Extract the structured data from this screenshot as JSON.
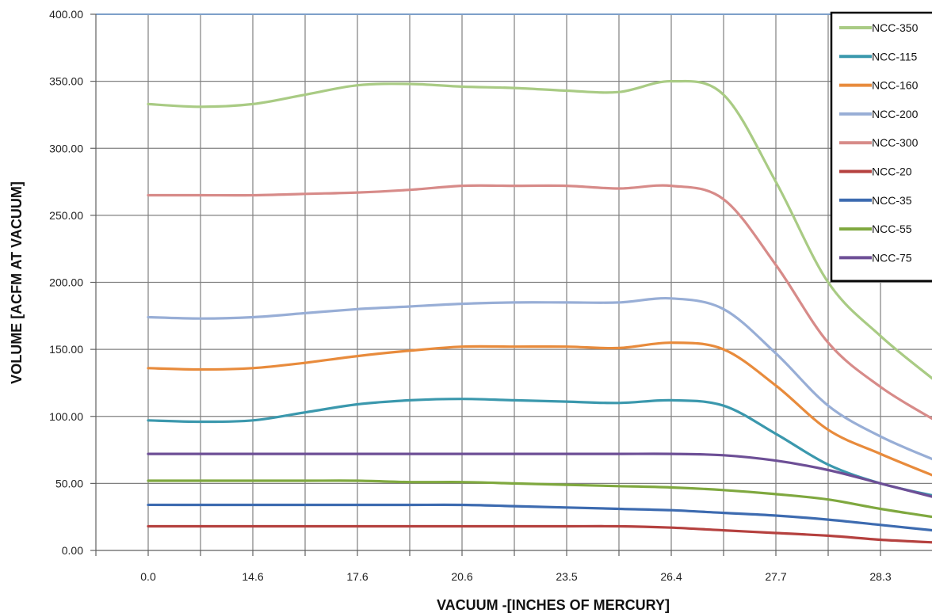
{
  "chart_data": {
    "type": "line",
    "title": "",
    "xlabel": "VACUUM -[INCHES OF MERCURY]",
    "ylabel": "VOLUME [ACFM AT VACUUM]",
    "ylim": [
      0,
      400
    ],
    "yticks": [
      "0.00",
      "50.00",
      "100.00",
      "150.00",
      "200.00",
      "250.00",
      "300.00",
      "350.00",
      "400.00"
    ],
    "x_tick_labels": [
      "0.0",
      "14.6",
      "17.6",
      "20.6",
      "23.5",
      "26.4",
      "27.7",
      "28.3"
    ],
    "grid": true,
    "legend_position": "top-right",
    "x_points": 15,
    "series": [
      {
        "name": "NCC-350",
        "color": "#a9cb84",
        "values": [
          333,
          331,
          333,
          340,
          347,
          348,
          346,
          345,
          343,
          342,
          350,
          340,
          275,
          200,
          160,
          128
        ]
      },
      {
        "name": "NCC-115",
        "color": "#3b98ad",
        "values": [
          97,
          96,
          97,
          103,
          109,
          112,
          113,
          112,
          111,
          110,
          112,
          108,
          87,
          64,
          50,
          41
        ]
      },
      {
        "name": "NCC-160",
        "color": "#e88b3c",
        "values": [
          136,
          135,
          136,
          140,
          145,
          149,
          152,
          152,
          152,
          151,
          155,
          150,
          123,
          90,
          72,
          56
        ]
      },
      {
        "name": "NCC-200",
        "color": "#98aed6",
        "values": [
          174,
          173,
          174,
          177,
          180,
          182,
          184,
          185,
          185,
          185,
          188,
          180,
          147,
          108,
          85,
          68
        ]
      },
      {
        "name": "NCC-300",
        "color": "#d78b89",
        "values": [
          265,
          265,
          265,
          266,
          267,
          269,
          272,
          272,
          272,
          270,
          272,
          262,
          213,
          155,
          122,
          98
        ]
      },
      {
        "name": "NCC-20",
        "color": "#b5413f",
        "values": [
          18,
          18,
          18,
          18,
          18,
          18,
          18,
          18,
          18,
          18,
          17,
          15,
          13,
          11,
          8,
          6
        ]
      },
      {
        "name": "NCC-35",
        "color": "#3d6bb0",
        "values": [
          34,
          34,
          34,
          34,
          34,
          34,
          34,
          33,
          32,
          31,
          30,
          28,
          26,
          23,
          19,
          15
        ]
      },
      {
        "name": "NCC-55",
        "color": "#7fa83f",
        "values": [
          52,
          52,
          52,
          52,
          52,
          51,
          51,
          50,
          49,
          48,
          47,
          45,
          42,
          38,
          31,
          25
        ]
      },
      {
        "name": "NCC-75",
        "color": "#6d4f96",
        "values": [
          72,
          72,
          72,
          72,
          72,
          72,
          72,
          72,
          72,
          72,
          72,
          71,
          67,
          60,
          50,
          40
        ]
      }
    ]
  }
}
